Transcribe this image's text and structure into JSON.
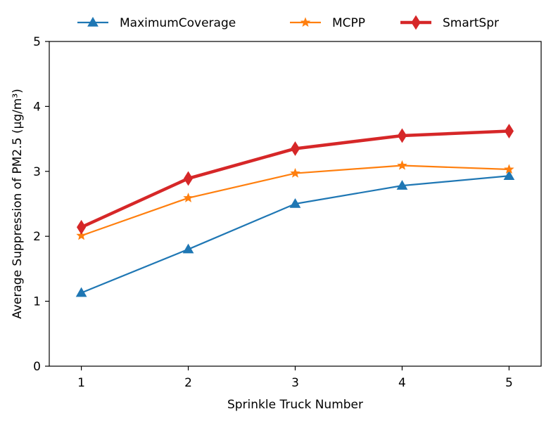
{
  "chart_data": {
    "type": "line",
    "xlabel": "Sprinkle Truck Number",
    "ylabel": "Average Suppression of PM2.5 (μg/m³)",
    "x": [
      1,
      2,
      3,
      4,
      5
    ],
    "xlim": [
      0.7,
      5.3
    ],
    "ylim": [
      0,
      5
    ],
    "xticks": [
      "1",
      "2",
      "3",
      "4",
      "5"
    ],
    "yticks": [
      "0",
      "1",
      "2",
      "3",
      "4",
      "5"
    ],
    "grid": false,
    "legend_position": "top-center",
    "series": [
      {
        "name": "MaximumCoverage",
        "values": [
          1.13,
          1.8,
          2.5,
          2.78,
          2.93
        ],
        "color": "#1f77b4",
        "marker": "triangle",
        "width": "thin"
      },
      {
        "name": "MCPP",
        "values": [
          2.01,
          2.59,
          2.97,
          3.09,
          3.03
        ],
        "color": "#ff7f0e",
        "marker": "star",
        "width": "thin"
      },
      {
        "name": "SmartSpr",
        "values": [
          2.14,
          2.89,
          3.35,
          3.55,
          3.62
        ],
        "color": "#d62728",
        "marker": "diamond",
        "width": "thick"
      }
    ]
  }
}
